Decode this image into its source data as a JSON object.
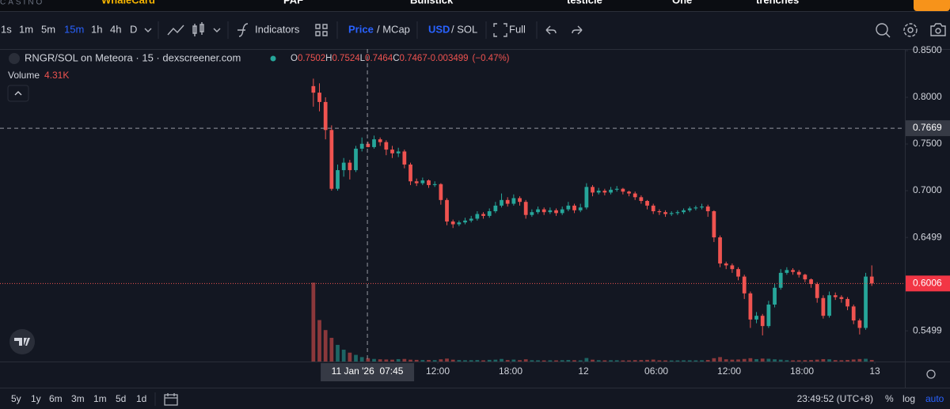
{
  "brand": "CASINO",
  "ticker": [
    "WhaleCard",
    "PAF",
    "Bullstick",
    "testicle",
    "One",
    "trenches"
  ],
  "toolbar": {
    "intervals": [
      "1s",
      "1m",
      "5m",
      "15m",
      "1h",
      "4h",
      "D"
    ],
    "active_interval": 3,
    "indicators": "Indicators",
    "price": "Price",
    "mcap": "/ MCap",
    "usd": "USD",
    "sol": "/ SOL",
    "full": "Full"
  },
  "bottom_bar": {
    "ranges": [
      "5y",
      "1y",
      "6m",
      "3m",
      "1m",
      "5d",
      "1d"
    ],
    "clock": "23:49:52 (UTC+8)",
    "percent": "%",
    "log": "log",
    "auto": "auto"
  },
  "chart_data": {
    "type": "candlestick",
    "title": "RNGR/SOL on Meteora · 15 · dexscreener.com",
    "ohlc_legend": [
      {
        "key": "O",
        "value": 0.7502
      },
      {
        "key": "H",
        "value": 0.7524
      },
      {
        "key": "L",
        "value": 0.7464
      },
      {
        "key": "C",
        "value": 0.7467
      }
    ],
    "change": -0.003499,
    "change_pct_label": "(−0.47%)",
    "colors": {
      "up": "#26a69a",
      "down": "#ef5350"
    },
    "open": [
      0.812,
      0.805,
      0.795,
      0.765,
      0.702,
      0.722,
      0.73,
      0.722,
      0.745,
      0.7502,
      0.7467,
      0.755,
      0.752,
      0.744,
      0.74,
      0.742,
      0.728,
      0.71,
      0.708,
      0.711,
      0.706,
      0.707,
      0.69,
      0.667,
      0.664,
      0.666,
      0.668,
      0.67,
      0.675,
      0.673,
      0.678,
      0.684,
      0.69,
      0.686,
      0.692,
      0.688,
      0.674,
      0.677,
      0.68,
      0.677,
      0.679,
      0.676,
      0.68,
      0.684,
      0.679,
      0.682,
      0.704,
      0.698,
      0.7,
      0.698,
      0.701,
      0.702,
      0.699,
      0.697,
      0.693,
      0.689,
      0.684,
      0.678,
      0.677,
      0.675,
      0.676,
      0.677,
      0.679,
      0.681,
      0.682,
      0.683,
      0.678,
      0.65,
      0.622,
      0.62,
      0.616,
      0.608,
      0.59,
      0.562,
      0.566,
      0.555,
      0.578,
      0.596,
      0.612,
      0.615,
      0.613,
      0.61,
      0.605,
      0.6,
      0.585,
      0.566,
      0.588,
      0.586,
      0.584,
      0.576,
      0.561,
      0.553,
      0.608
    ],
    "high": [
      0.82,
      0.815,
      0.8,
      0.77,
      0.728,
      0.735,
      0.733,
      0.748,
      0.757,
      0.7524,
      0.759,
      0.757,
      0.754,
      0.748,
      0.746,
      0.744,
      0.73,
      0.713,
      0.714,
      0.712,
      0.71,
      0.708,
      0.692,
      0.669,
      0.668,
      0.671,
      0.673,
      0.678,
      0.677,
      0.681,
      0.688,
      0.697,
      0.693,
      0.696,
      0.694,
      0.69,
      0.68,
      0.683,
      0.682,
      0.682,
      0.681,
      0.683,
      0.688,
      0.686,
      0.686,
      0.708,
      0.706,
      0.703,
      0.702,
      0.704,
      0.705,
      0.703,
      0.7,
      0.699,
      0.695,
      0.69,
      0.686,
      0.68,
      0.679,
      0.678,
      0.679,
      0.681,
      0.683,
      0.684,
      0.686,
      0.685,
      0.679,
      0.652,
      0.624,
      0.622,
      0.618,
      0.61,
      0.592,
      0.57,
      0.568,
      0.582,
      0.6,
      0.616,
      0.618,
      0.617,
      0.615,
      0.611,
      0.606,
      0.602,
      0.588,
      0.592,
      0.591,
      0.588,
      0.586,
      0.578,
      0.563,
      0.612,
      0.62
    ],
    "low": [
      0.79,
      0.785,
      0.755,
      0.7,
      0.7,
      0.715,
      0.712,
      0.72,
      0.742,
      0.7464,
      0.745,
      0.748,
      0.738,
      0.735,
      0.736,
      0.724,
      0.706,
      0.705,
      0.706,
      0.703,
      0.704,
      0.685,
      0.663,
      0.66,
      0.662,
      0.664,
      0.666,
      0.668,
      0.67,
      0.671,
      0.676,
      0.682,
      0.683,
      0.684,
      0.684,
      0.67,
      0.672,
      0.675,
      0.674,
      0.675,
      0.673,
      0.674,
      0.678,
      0.676,
      0.677,
      0.68,
      0.694,
      0.696,
      0.695,
      0.696,
      0.699,
      0.696,
      0.694,
      0.69,
      0.686,
      0.68,
      0.675,
      0.674,
      0.672,
      0.673,
      0.674,
      0.675,
      0.677,
      0.679,
      0.68,
      0.672,
      0.645,
      0.618,
      0.616,
      0.612,
      0.604,
      0.584,
      0.553,
      0.558,
      0.545,
      0.553,
      0.575,
      0.594,
      0.61,
      0.61,
      0.607,
      0.602,
      0.596,
      0.58,
      0.563,
      0.564,
      0.583,
      0.58,
      0.572,
      0.557,
      0.546,
      0.551,
      0.598
    ],
    "close": [
      0.805,
      0.795,
      0.765,
      0.702,
      0.722,
      0.73,
      0.722,
      0.745,
      0.7502,
      0.7467,
      0.755,
      0.752,
      0.744,
      0.74,
      0.742,
      0.728,
      0.71,
      0.708,
      0.711,
      0.706,
      0.707,
      0.69,
      0.667,
      0.664,
      0.666,
      0.668,
      0.67,
      0.675,
      0.673,
      0.678,
      0.684,
      0.69,
      0.686,
      0.692,
      0.688,
      0.674,
      0.677,
      0.68,
      0.677,
      0.679,
      0.676,
      0.68,
      0.684,
      0.679,
      0.682,
      0.704,
      0.698,
      0.7,
      0.698,
      0.701,
      0.702,
      0.699,
      0.697,
      0.693,
      0.689,
      0.684,
      0.678,
      0.677,
      0.675,
      0.676,
      0.677,
      0.679,
      0.681,
      0.682,
      0.683,
      0.678,
      0.65,
      0.622,
      0.62,
      0.616,
      0.608,
      0.59,
      0.562,
      0.566,
      0.555,
      0.578,
      0.596,
      0.612,
      0.615,
      0.613,
      0.61,
      0.605,
      0.6,
      0.585,
      0.566,
      0.588,
      0.586,
      0.584,
      0.576,
      0.561,
      0.553,
      0.608,
      0.6006
    ],
    "volume": {
      "name": "Volume",
      "last_label": "4.31K",
      "vlim": [
        0,
        250000
      ],
      "values": [
        213000,
        112000,
        85000,
        64000,
        45000,
        32000,
        24000,
        18000,
        12000,
        9000,
        7000,
        6000,
        5500,
        5000,
        6500,
        7000,
        5000,
        4500,
        4000,
        4200,
        3800,
        6000,
        8000,
        5000,
        4000,
        3500,
        3600,
        4000,
        3200,
        4500,
        5000,
        7000,
        4000,
        5200,
        3800,
        6000,
        3500,
        3300,
        3000,
        3400,
        3100,
        3600,
        4200,
        3500,
        3200,
        9500,
        5000,
        3600,
        3200,
        3500,
        3400,
        3000,
        3100,
        3800,
        4000,
        4500,
        5200,
        3300,
        3100,
        2900,
        3000,
        3200,
        3300,
        3100,
        3400,
        4200,
        9000,
        12000,
        6000,
        5000,
        5500,
        7000,
        9000,
        6500,
        8000,
        7500,
        6000,
        5000,
        3500,
        3200,
        3400,
        3600,
        4000,
        5000,
        6500,
        6000,
        3800,
        3500,
        4200,
        5500,
        6800,
        7500,
        4310
      ]
    },
    "xlim": [
      -51.63,
      97.45
    ],
    "xticks": [
      {
        "value": 20.5,
        "label": "12:00"
      },
      {
        "value": 32.5,
        "label": "18:00"
      },
      {
        "value": 44.5,
        "label": "12"
      },
      {
        "value": 56.5,
        "label": "06:00"
      },
      {
        "value": 68.5,
        "label": "12:00"
      },
      {
        "value": 80.5,
        "label": "18:00"
      },
      {
        "value": 92.5,
        "label": "13"
      }
    ],
    "ylim": [
      0.517,
      0.8517
    ],
    "yticks": [
      {
        "value": 0.85,
        "label": "0.8500"
      },
      {
        "value": 0.8,
        "label": "0.8000"
      },
      {
        "value": 0.75,
        "label": "0.7500"
      },
      {
        "value": 0.7,
        "label": "0.7000"
      },
      0.6499,
      0.5499
    ],
    "grid": false,
    "crosshair": {
      "x": 8.9,
      "y": 0.7669,
      "x_label": "11 Jan '26  07:45"
    }
  }
}
